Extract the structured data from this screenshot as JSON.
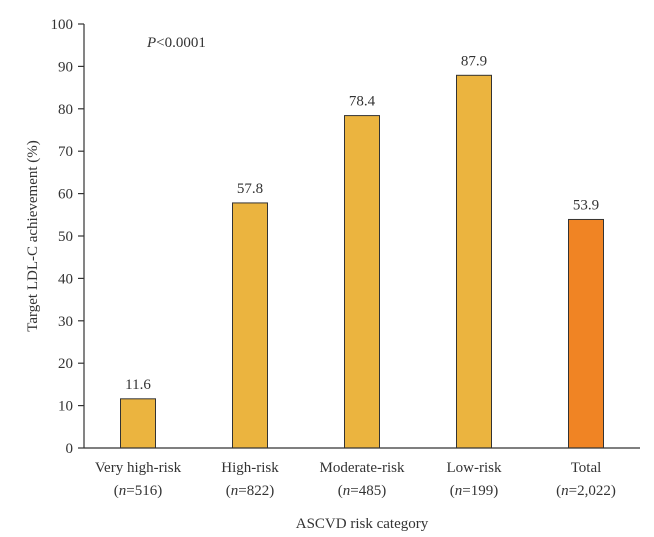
{
  "chart_data": {
    "type": "bar",
    "title": "",
    "xlabel": "ASCVD risk category",
    "ylabel": "Target LDL-C achievement (%)",
    "ylim": [
      0,
      100
    ],
    "yticks": [
      0,
      10,
      20,
      30,
      40,
      50,
      60,
      70,
      80,
      90,
      100
    ],
    "annotation": {
      "p_symbol": "P",
      "p_text": "<0.0001"
    },
    "categories": [
      {
        "name": "Very high-risk",
        "n_symbol": "n",
        "n_value": "=516",
        "value": 11.6,
        "value_label": "11.6",
        "color": "#EBB43F"
      },
      {
        "name": "High-risk",
        "n_symbol": "n",
        "n_value": "=822",
        "value": 57.8,
        "value_label": "57.8",
        "color": "#EBB43F"
      },
      {
        "name": "Moderate-risk",
        "n_symbol": "n",
        "n_value": "=485",
        "value": 78.4,
        "value_label": "78.4",
        "color": "#EBB43F"
      },
      {
        "name": "Low-risk",
        "n_symbol": "n",
        "n_value": "=199",
        "value": 87.9,
        "value_label": "87.9",
        "color": "#EBB43F"
      },
      {
        "name": "Total",
        "n_symbol": "n",
        "n_value": "=2,022",
        "value": 53.9,
        "value_label": "53.9",
        "color": "#F08424"
      }
    ]
  }
}
